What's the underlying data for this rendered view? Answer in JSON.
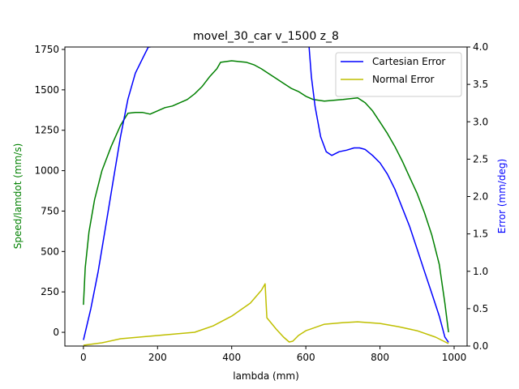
{
  "chart_data": {
    "type": "line",
    "title": "movel_30_car v_1500 z_8",
    "xlabel": "lambda (mm)",
    "ylabel_left": "Speed/lamdot (mm/s)",
    "ylabel_right": "Error (mm/deg)",
    "xlim": [
      -50,
      1035
    ],
    "ylim_left": [
      -85,
      1765
    ],
    "ylim_right": [
      0,
      4
    ],
    "x_ticks": [
      0,
      200,
      400,
      600,
      800,
      1000
    ],
    "y_left_ticks": [
      0,
      250,
      500,
      750,
      1000,
      1250,
      1500,
      1750
    ],
    "y_right_ticks": [
      0.0,
      0.5,
      1.0,
      1.5,
      2.0,
      2.5,
      3.0,
      3.5,
      4.0
    ],
    "y_right_tick_labels": [
      "0.0",
      "0.5",
      "1.0",
      "1.5",
      "2.0",
      "2.5",
      "3.0",
      "3.5",
      "4.0"
    ],
    "legend_position": "top-right",
    "colors": {
      "speed": "#008000",
      "cartesian": "#0000ff",
      "normal": "#bfbf00"
    },
    "series": [
      {
        "axis": "left",
        "color": "#008000",
        "x": [
          0,
          5,
          15,
          30,
          50,
          75,
          100,
          120,
          140,
          160,
          180,
          200,
          220,
          240,
          260,
          280,
          300,
          320,
          340,
          360,
          370,
          400,
          420,
          440,
          460,
          480,
          500,
          520,
          540,
          560,
          580,
          600,
          620,
          650,
          700,
          740,
          760,
          780,
          800,
          820,
          840,
          860,
          880,
          900,
          920,
          940,
          960,
          975,
          985
        ],
        "values": [
          170,
          400,
          620,
          820,
          1000,
          1150,
          1280,
          1355,
          1360,
          1360,
          1350,
          1370,
          1390,
          1400,
          1420,
          1440,
          1475,
          1520,
          1580,
          1630,
          1670,
          1680,
          1675,
          1670,
          1655,
          1630,
          1600,
          1570,
          1540,
          1510,
          1490,
          1460,
          1440,
          1430,
          1440,
          1450,
          1420,
          1370,
          1300,
          1230,
          1150,
          1060,
          960,
          860,
          740,
          600,
          420,
          180,
          0
        ]
      },
      {
        "axis": "right",
        "color": "#0000ff",
        "name": "Cartesian Error",
        "x": [
          0,
          20,
          40,
          60,
          80,
          100,
          120,
          140,
          160,
          175,
          180,
          182,
          608,
          615,
          625,
          640,
          655,
          670,
          690,
          710,
          730,
          745,
          760,
          780,
          800,
          820,
          840,
          860,
          880,
          900,
          920,
          940,
          960,
          975,
          985
        ],
        "values": [
          0.08,
          0.5,
          1.0,
          1.6,
          2.2,
          2.8,
          3.3,
          3.65,
          3.85,
          4.0,
          4.0,
          4.05,
          4.05,
          3.6,
          3.2,
          2.8,
          2.6,
          2.55,
          2.6,
          2.62,
          2.65,
          2.65,
          2.63,
          2.55,
          2.45,
          2.3,
          2.1,
          1.85,
          1.6,
          1.3,
          1.0,
          0.7,
          0.4,
          0.12,
          0.05
        ]
      },
      {
        "axis": "left",
        "color": "#bfbf00",
        "name": "Normal Error",
        "x": [
          0,
          50,
          100,
          150,
          200,
          250,
          300,
          350,
          400,
          450,
          480,
          490,
          495,
          520,
          540,
          555,
          565,
          580,
          600,
          650,
          700,
          740,
          800,
          850,
          900,
          950,
          985
        ],
        "values": [
          -80,
          -65,
          -40,
          -30,
          -20,
          -10,
          0,
          40,
          100,
          180,
          260,
          300,
          90,
          20,
          -30,
          -60,
          -55,
          -20,
          10,
          50,
          60,
          65,
          55,
          35,
          10,
          -30,
          -70
        ]
      }
    ]
  }
}
